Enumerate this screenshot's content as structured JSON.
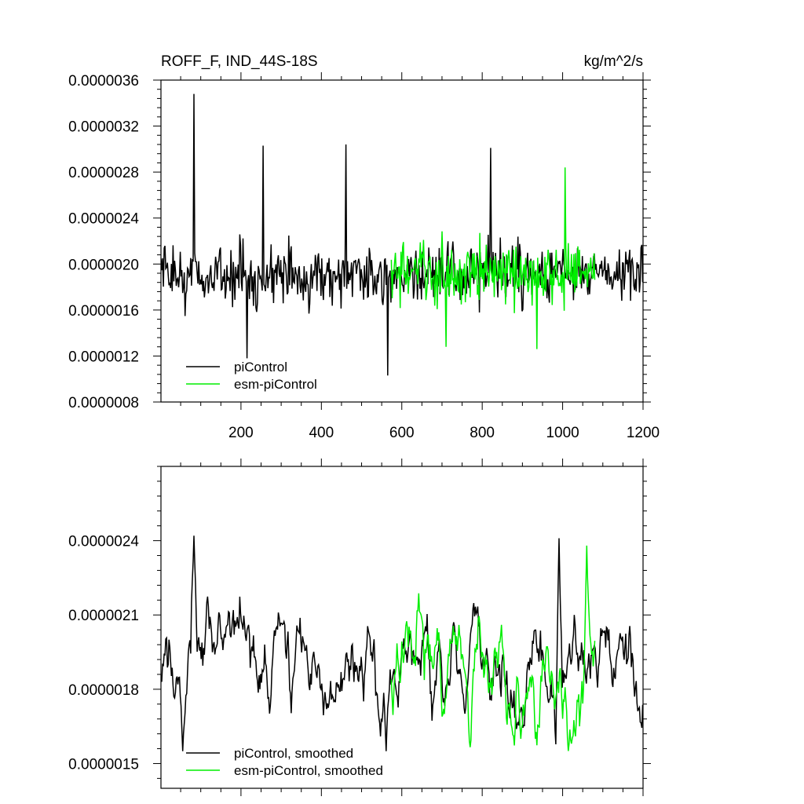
{
  "colors": {
    "piControl": "#000000",
    "esm_piControl": "#00ee00",
    "axis": "#000000",
    "background": "#ffffff"
  },
  "chart_data": [
    {
      "type": "line",
      "title": "ROFF_F, IND_44S-18S",
      "units": "kg/m^2/s",
      "xlabel": "",
      "ylabel": "",
      "xlim": [
        1,
        1200
      ],
      "ylim": [
        8e-07,
        3.6e-06
      ],
      "xticks": [
        "200",
        "400",
        "600",
        "800",
        "1000",
        "1200"
      ],
      "yticks": [
        "0.0000008",
        "0.0000012",
        "0.0000016",
        "0.0000020",
        "0.0000024",
        "0.0000028",
        "0.0000032",
        "0.0000036"
      ],
      "legend_position": "bottom-left",
      "grid": false,
      "series": [
        {
          "name": "piControl",
          "color": "#000000",
          "x_start": 1,
          "x_end": 1200,
          "x_step": 2,
          "description": "monthly area-mean runoff flux, range approx 0.00000100–0.00000348",
          "y_mean": 1.9e-06,
          "y_peaks": [
            {
              "x": 83,
              "y": 3.48e-06
            },
            {
              "x": 255,
              "y": 3.03e-06
            },
            {
              "x": 460,
              "y": 3.04e-06
            },
            {
              "x": 820,
              "y": 3.01e-06
            },
            {
              "x": 565,
              "y": 1.03e-06
            },
            {
              "x": 215,
              "y": 1.18e-06
            }
          ]
        },
        {
          "name": "esm-piControl",
          "color": "#00ee00",
          "x_start": 574,
          "x_end": 1080,
          "x_step": 2,
          "y_mean": 1.92e-06,
          "y_peaks": [
            {
              "x": 1005,
              "y": 2.84e-06
            },
            {
              "x": 710,
              "y": 1.28e-06
            },
            {
              "x": 935,
              "y": 1.26e-06
            }
          ]
        }
      ]
    },
    {
      "type": "line",
      "title": "",
      "xlabel": "",
      "ylabel": "",
      "xlim": [
        1,
        1200
      ],
      "ylim": [
        1.4e-06,
        2.7e-06
      ],
      "xticks": [],
      "yticks": [
        "0.0000015",
        "0.0000018",
        "0.0000021",
        "0.0000024"
      ],
      "legend_position": "bottom-left",
      "grid": false,
      "series": [
        {
          "name": "piControl, smoothed",
          "color": "#000000",
          "x_start": 1,
          "x_end": 1200,
          "x_step": 2,
          "y_mean": 1.9e-06,
          "y_peaks": [
            {
              "x": 83,
              "y": 2.42e-06
            },
            {
              "x": 990,
              "y": 2.41e-06
            },
            {
              "x": 55,
              "y": 1.55e-06
            },
            {
              "x": 560,
              "y": 1.55e-06
            }
          ]
        },
        {
          "name": "esm-piControl, smoothed",
          "color": "#00ee00",
          "x_start": 574,
          "x_end": 1080,
          "x_step": 2,
          "y_mean": 1.92e-06,
          "y_peaks": [
            {
              "x": 1060,
              "y": 2.38e-06
            },
            {
              "x": 895,
              "y": 1.6e-06
            }
          ]
        }
      ]
    }
  ]
}
